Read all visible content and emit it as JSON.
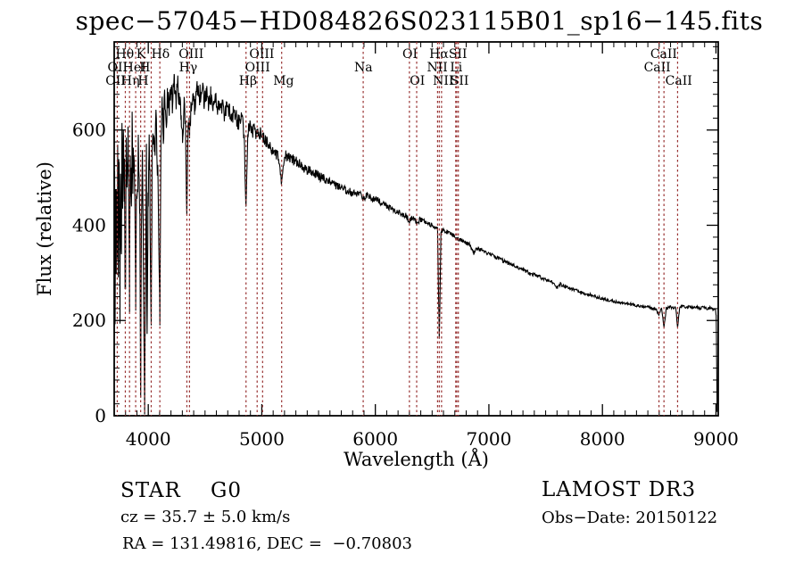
{
  "chart_data": {
    "type": "line",
    "title": "spec−57045−HD084826S023115B01_sp16−145.fits",
    "xlabel": "Wavelength (Å)",
    "ylabel": "Flux (relative)",
    "xlim": [
      3700,
      9020
    ],
    "ylim": [
      0,
      785
    ],
    "grid": false,
    "legend": "none",
    "x_major_ticks": [
      4000,
      5000,
      6000,
      7000,
      8000,
      9000
    ],
    "x_minor_step": 100,
    "y_major_ticks": [
      0,
      200,
      400,
      600
    ],
    "y_minor_step": 25,
    "axis_color": "#000000",
    "spectrum_color": "#000000",
    "marker_color": "#993333",
    "marker_lines_wavelengths": [
      3727,
      3798,
      3835,
      3889,
      3933,
      3968,
      4026,
      4102,
      4340,
      4363,
      4861,
      4959,
      5007,
      5175,
      5893,
      6300,
      6364,
      6548,
      6563,
      6583,
      6708,
      6717,
      6731,
      8498,
      8542,
      8662
    ],
    "marker_labels": [
      {
        "text": "Hθ",
        "wavelength": 3793,
        "row": 1
      },
      {
        "text": "K",
        "wavelength": 3936,
        "row": 1
      },
      {
        "text": "Hδ",
        "wavelength": 4108,
        "row": 1
      },
      {
        "text": "OIII",
        "wavelength": 4378,
        "row": 1
      },
      {
        "text": "OIII",
        "wavelength": 5000,
        "row": 1
      },
      {
        "text": "OI",
        "wavelength": 6305,
        "row": 1
      },
      {
        "text": "Hα",
        "wavelength": 6560,
        "row": 1
      },
      {
        "text": "SII",
        "wavelength": 6727,
        "row": 1
      },
      {
        "text": "CaII",
        "wavelength": 8540,
        "row": 1
      },
      {
        "text": "OII",
        "wavelength": 3730,
        "row": 2
      },
      {
        "text": "HeI",
        "wavelength": 3878,
        "row": 2
      },
      {
        "text": "H",
        "wavelength": 3970,
        "row": 2
      },
      {
        "text": "Hγ",
        "wavelength": 4352,
        "row": 2
      },
      {
        "text": "OIII",
        "wavelength": 4963,
        "row": 2
      },
      {
        "text": "Na",
        "wavelength": 5895,
        "row": 2
      },
      {
        "text": "NII",
        "wavelength": 6546,
        "row": 2
      },
      {
        "text": "Li",
        "wavelength": 6712,
        "row": 2
      },
      {
        "text": "CaII",
        "wavelength": 8483,
        "row": 2
      },
      {
        "text": "OII",
        "wavelength": 3712,
        "row": 3
      },
      {
        "text": "Hη",
        "wavelength": 3843,
        "row": 3
      },
      {
        "text": "H",
        "wavelength": 3955,
        "row": 3
      },
      {
        "text": "Hβ",
        "wavelength": 4878,
        "row": 3
      },
      {
        "text": "Mg",
        "wavelength": 5192,
        "row": 3
      },
      {
        "text": "OI",
        "wavelength": 6370,
        "row": 3
      },
      {
        "text": "NII",
        "wavelength": 6598,
        "row": 3
      },
      {
        "text": "SII",
        "wavelength": 6742,
        "row": 3
      },
      {
        "text": "CaII",
        "wavelength": 8672,
        "row": 3
      }
    ],
    "spectrum_anchors": [
      [
        3700,
        80
      ],
      [
        3704,
        460
      ],
      [
        3708,
        200
      ],
      [
        3713,
        520
      ],
      [
        3718,
        300
      ],
      [
        3722,
        480
      ],
      [
        3727,
        310
      ],
      [
        3731,
        540
      ],
      [
        3736,
        240
      ],
      [
        3741,
        560
      ],
      [
        3746,
        420
      ],
      [
        3751,
        180
      ],
      [
        3756,
        540
      ],
      [
        3762,
        320
      ],
      [
        3768,
        580
      ],
      [
        3775,
        460
      ],
      [
        3782,
        610
      ],
      [
        3790,
        480
      ],
      [
        3798,
        250
      ],
      [
        3806,
        540
      ],
      [
        3814,
        470
      ],
      [
        3822,
        590
      ],
      [
        3828,
        500
      ],
      [
        3835,
        230
      ],
      [
        3842,
        520
      ],
      [
        3850,
        440
      ],
      [
        3858,
        600
      ],
      [
        3866,
        500
      ],
      [
        3874,
        560
      ],
      [
        3882,
        420
      ],
      [
        3889,
        235
      ],
      [
        3896,
        500
      ],
      [
        3904,
        430
      ],
      [
        3912,
        540
      ],
      [
        3920,
        480
      ],
      [
        3926,
        380
      ],
      [
        3933,
        40
      ],
      [
        3940,
        360
      ],
      [
        3948,
        520
      ],
      [
        3955,
        420
      ],
      [
        3962,
        150
      ],
      [
        3968,
        5
      ],
      [
        3976,
        300
      ],
      [
        3984,
        520
      ],
      [
        3990,
        150
      ],
      [
        3998,
        460
      ],
      [
        4006,
        560
      ],
      [
        4014,
        500
      ],
      [
        4026,
        185
      ],
      [
        4034,
        520
      ],
      [
        4044,
        600
      ],
      [
        4054,
        540
      ],
      [
        4064,
        620
      ],
      [
        4076,
        560
      ],
      [
        4088,
        480
      ],
      [
        4102,
        215
      ],
      [
        4112,
        560
      ],
      [
        4122,
        640
      ],
      [
        4132,
        590
      ],
      [
        4144,
        660
      ],
      [
        4156,
        610
      ],
      [
        4170,
        670
      ],
      [
        4185,
        630
      ],
      [
        4200,
        690
      ],
      [
        4215,
        655
      ],
      [
        4230,
        700
      ],
      [
        4245,
        665
      ],
      [
        4260,
        695
      ],
      [
        4275,
        660
      ],
      [
        4290,
        640
      ],
      [
        4302,
        590
      ],
      [
        4315,
        650
      ],
      [
        4328,
        610
      ],
      [
        4340,
        415
      ],
      [
        4352,
        620
      ],
      [
        4365,
        590
      ],
      [
        4380,
        660
      ],
      [
        4395,
        680
      ],
      [
        4410,
        650
      ],
      [
        4430,
        690
      ],
      [
        4450,
        665
      ],
      [
        4470,
        695
      ],
      [
        4490,
        660
      ],
      [
        4510,
        685
      ],
      [
        4530,
        655
      ],
      [
        4550,
        675
      ],
      [
        4570,
        650
      ],
      [
        4590,
        668
      ],
      [
        4610,
        645
      ],
      [
        4640,
        660
      ],
      [
        4670,
        635
      ],
      [
        4700,
        648
      ],
      [
        4730,
        625
      ],
      [
        4760,
        638
      ],
      [
        4790,
        615
      ],
      [
        4820,
        628
      ],
      [
        4845,
        590
      ],
      [
        4861,
        430
      ],
      [
        4878,
        595
      ],
      [
        4895,
        615
      ],
      [
        4915,
        595
      ],
      [
        4935,
        605
      ],
      [
        4955,
        588
      ],
      [
        4975,
        598
      ],
      [
        5000,
        585
      ],
      [
        5030,
        578
      ],
      [
        5060,
        570
      ],
      [
        5090,
        562
      ],
      [
        5120,
        555
      ],
      [
        5150,
        540
      ],
      [
        5175,
        487
      ],
      [
        5200,
        548
      ],
      [
        5230,
        545
      ],
      [
        5260,
        540
      ],
      [
        5290,
        535
      ],
      [
        5320,
        530
      ],
      [
        5350,
        525
      ],
      [
        5380,
        520
      ],
      [
        5410,
        516
      ],
      [
        5440,
        512
      ],
      [
        5470,
        508
      ],
      [
        5500,
        504
      ],
      [
        5530,
        500
      ],
      [
        5560,
        496
      ],
      [
        5590,
        492
      ],
      [
        5620,
        488
      ],
      [
        5650,
        484
      ],
      [
        5680,
        480
      ],
      [
        5710,
        477
      ],
      [
        5740,
        474
      ],
      [
        5770,
        471
      ],
      [
        5800,
        468
      ],
      [
        5830,
        465
      ],
      [
        5860,
        470
      ],
      [
        5893,
        455
      ],
      [
        5925,
        462
      ],
      [
        5960,
        458
      ],
      [
        6000,
        454
      ],
      [
        6040,
        449
      ],
      [
        6080,
        444
      ],
      [
        6120,
        438
      ],
      [
        6160,
        433
      ],
      [
        6200,
        428
      ],
      [
        6240,
        424
      ],
      [
        6270,
        420
      ],
      [
        6300,
        408
      ],
      [
        6330,
        416
      ],
      [
        6364,
        405
      ],
      [
        6395,
        412
      ],
      [
        6430,
        408
      ],
      [
        6465,
        404
      ],
      [
        6500,
        400
      ],
      [
        6530,
        396
      ],
      [
        6548,
        390
      ],
      [
        6563,
        160
      ],
      [
        6578,
        385
      ],
      [
        6600,
        390
      ],
      [
        6630,
        386
      ],
      [
        6660,
        382
      ],
      [
        6690,
        378
      ],
      [
        6717,
        372
      ],
      [
        6745,
        370
      ],
      [
        6775,
        366
      ],
      [
        6805,
        362
      ],
      [
        6835,
        358
      ],
      [
        6867,
        342
      ],
      [
        6895,
        352
      ],
      [
        6925,
        349
      ],
      [
        6960,
        345
      ],
      [
        7000,
        341
      ],
      [
        7040,
        336
      ],
      [
        7080,
        331
      ],
      [
        7120,
        326
      ],
      [
        7160,
        321
      ],
      [
        7200,
        317
      ],
      [
        7240,
        312
      ],
      [
        7280,
        308
      ],
      [
        7320,
        304
      ],
      [
        7360,
        300
      ],
      [
        7400,
        296
      ],
      [
        7440,
        292
      ],
      [
        7480,
        288
      ],
      [
        7520,
        284
      ],
      [
        7560,
        280
      ],
      [
        7594,
        268
      ],
      [
        7630,
        276
      ],
      [
        7670,
        272
      ],
      [
        7710,
        268
      ],
      [
        7750,
        264
      ],
      [
        7790,
        261
      ],
      [
        7830,
        258
      ],
      [
        7870,
        255
      ],
      [
        7910,
        252
      ],
      [
        7950,
        249
      ],
      [
        8000,
        246
      ],
      [
        8050,
        243
      ],
      [
        8100,
        240
      ],
      [
        8150,
        238
      ],
      [
        8200,
        236
      ],
      [
        8250,
        234
      ],
      [
        8300,
        232
      ],
      [
        8350,
        230
      ],
      [
        8400,
        228
      ],
      [
        8440,
        226
      ],
      [
        8470,
        224
      ],
      [
        8498,
        213
      ],
      [
        8520,
        228
      ],
      [
        8542,
        184
      ],
      [
        8562,
        226
      ],
      [
        8590,
        229
      ],
      [
        8620,
        226
      ],
      [
        8645,
        228
      ],
      [
        8662,
        185
      ],
      [
        8680,
        227
      ],
      [
        8710,
        230
      ],
      [
        8740,
        227
      ],
      [
        8770,
        230
      ],
      [
        8800,
        226
      ],
      [
        8830,
        229
      ],
      [
        8860,
        225
      ],
      [
        8890,
        228
      ],
      [
        8920,
        224
      ],
      [
        8950,
        227
      ],
      [
        8975,
        223
      ],
      [
        8995,
        225
      ],
      [
        9002,
        210
      ],
      [
        9006,
        120
      ],
      [
        9010,
        8
      ]
    ],
    "noise_profile": [
      [
        3700,
        80
      ],
      [
        3850,
        65
      ],
      [
        4000,
        50
      ],
      [
        4200,
        30
      ],
      [
        4500,
        22
      ],
      [
        4800,
        17
      ],
      [
        5100,
        13
      ],
      [
        5500,
        10
      ],
      [
        6000,
        7
      ],
      [
        6600,
        5
      ],
      [
        7300,
        4
      ],
      [
        8200,
        3.5
      ],
      [
        9010,
        3
      ]
    ]
  },
  "annotations": {
    "class_label": "STAR    G0",
    "cz_label": "cz = 35.7 ± 5.0 km/s",
    "radec_label": "RA = 131.49816, DEC =  −0.70803",
    "survey_label": "LAMOST DR3",
    "obsdate_label": "Obs−Date: 20150122"
  }
}
